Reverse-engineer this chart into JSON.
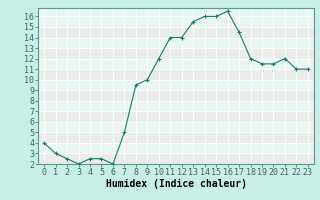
{
  "x": [
    0,
    1,
    2,
    3,
    4,
    5,
    6,
    7,
    8,
    9,
    10,
    11,
    12,
    13,
    14,
    15,
    16,
    17,
    18,
    19,
    20,
    21,
    22,
    23
  ],
  "y": [
    4.0,
    3.0,
    2.5,
    2.0,
    2.5,
    2.5,
    2.0,
    5.0,
    9.5,
    10.0,
    12.0,
    14.0,
    14.0,
    15.5,
    16.0,
    16.0,
    16.5,
    14.5,
    12.0,
    11.5,
    11.5,
    12.0,
    11.0,
    11.0
  ],
  "xlabel": "Humidex (Indice chaleur)",
  "ylim": [
    2,
    16.8
  ],
  "xlim": [
    -0.5,
    23.5
  ],
  "yticks": [
    2,
    3,
    4,
    5,
    6,
    7,
    8,
    9,
    10,
    11,
    12,
    13,
    14,
    15,
    16
  ],
  "xticks": [
    0,
    1,
    2,
    3,
    4,
    5,
    6,
    7,
    8,
    9,
    10,
    11,
    12,
    13,
    14,
    15,
    16,
    17,
    18,
    19,
    20,
    21,
    22,
    23
  ],
  "line_color": "#1a7a6a",
  "marker_color": "#1a7a6a",
  "bg_outer": "#c8eee8",
  "bg_plot": "#e8f8f5",
  "grid_major_color": "#ffffff",
  "grid_minor_color": "#f0c0c0",
  "xlabel_fontsize": 7,
  "tick_fontsize": 6
}
